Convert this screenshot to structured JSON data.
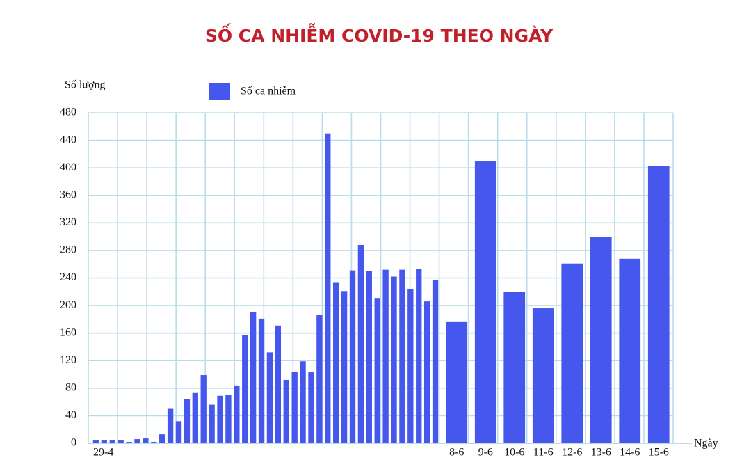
{
  "chart_data": {
    "type": "bar",
    "title": "SỐ CA NHIỄM COVID-19 THEO NGÀY",
    "y_label": "Số lượng",
    "x_label": "Ngày",
    "categories": [
      "29-4",
      null,
      null,
      null,
      null,
      null,
      null,
      null,
      null,
      null,
      null,
      null,
      null,
      null,
      null,
      null,
      null,
      null,
      null,
      null,
      null,
      null,
      null,
      null,
      null,
      null,
      null,
      null,
      null,
      null,
      null,
      null,
      null,
      null,
      null,
      null,
      null,
      null,
      null,
      null,
      null,
      null,
      "8-6",
      "9-6",
      "10-6",
      "11-6",
      "12-6",
      "13-6",
      "14-6",
      "15-6"
    ],
    "series": [
      {
        "name": "Số ca nhiễm",
        "color": "#4657ee",
        "values": [
          4,
          4,
          4,
          4,
          2,
          6,
          7,
          2,
          13,
          50,
          32,
          64,
          73,
          99,
          56,
          69,
          70,
          83,
          157,
          191,
          181,
          132,
          171,
          92,
          104,
          119,
          103,
          186,
          450,
          234,
          221,
          251,
          288,
          250,
          211,
          252,
          242,
          252,
          224,
          253,
          206,
          237,
          176,
          410,
          220,
          196,
          261,
          300,
          268,
          403
        ]
      }
    ],
    "ylim": [
      0,
      480
    ],
    "yticks": [
      0,
      40,
      80,
      120,
      160,
      200,
      240,
      280,
      320,
      360,
      400,
      440,
      480
    ],
    "grid": true
  }
}
